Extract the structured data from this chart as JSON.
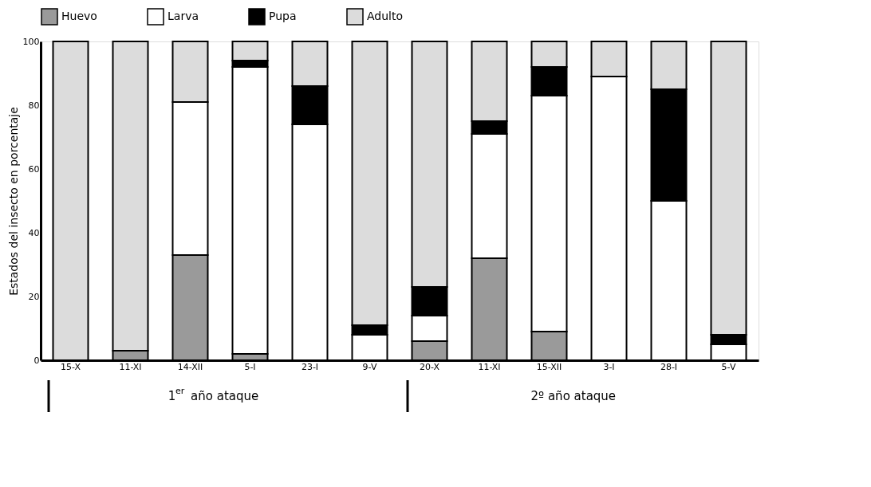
{
  "chart_data": {
    "type": "bar",
    "stacked": true,
    "ylabel": "Estados del insecto en porcentaje",
    "categories": [
      "15-X",
      "11-XI",
      "14-XII",
      "5-I",
      "23-I",
      "9-V",
      "20-X",
      "11-XI",
      "15-XII",
      "3-I",
      "28-I",
      "5-V"
    ],
    "series": [
      {
        "name": "Huevo",
        "color": "#9a9a9a",
        "values": [
          0,
          3,
          33,
          2,
          0,
          0,
          6,
          32,
          9,
          0,
          0,
          0
        ]
      },
      {
        "name": "Larva",
        "color": "#ffffff",
        "values": [
          0,
          0,
          48,
          90,
          74,
          8,
          8,
          39,
          74,
          89,
          50,
          5
        ]
      },
      {
        "name": "Pupa",
        "color": "#000000",
        "values": [
          0,
          0,
          0,
          2,
          12,
          3,
          9,
          4,
          9,
          0,
          35,
          3
        ]
      },
      {
        "name": "Adulto",
        "color": "#dcdcdc",
        "values": [
          100,
          97,
          19,
          6,
          14,
          89,
          77,
          25,
          8,
          11,
          15,
          92
        ]
      }
    ],
    "ylim": [
      0,
      100
    ],
    "yticks": [
      0,
      20,
      40,
      60,
      80,
      100
    ],
    "grid": false,
    "legend": "top",
    "annotations": [
      "1$^{er}$ año ataque",
      "2º año ataque"
    ]
  }
}
